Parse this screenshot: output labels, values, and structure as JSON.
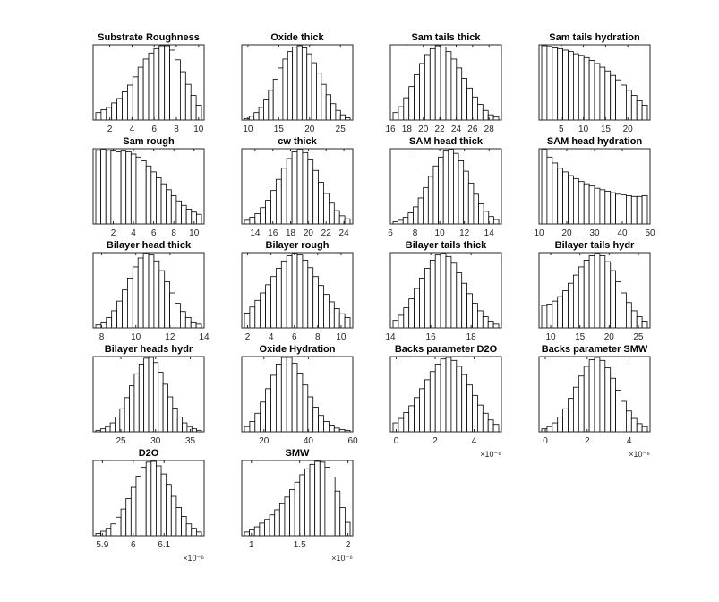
{
  "chart_data": [
    {
      "type": "bar",
      "title": "Substrate Roughness",
      "xlim": [
        0.5,
        10.5
      ],
      "xticks": [
        2,
        4,
        6,
        8,
        10
      ],
      "tick_labels": [
        "2",
        "4",
        "6",
        "8",
        "10"
      ],
      "exponent": "",
      "values": [
        0.1,
        0.14,
        0.17,
        0.23,
        0.29,
        0.38,
        0.47,
        0.58,
        0.71,
        0.82,
        0.9,
        0.96,
        1.0,
        1.0,
        0.94,
        0.81,
        0.65,
        0.48,
        0.33,
        0.2
      ]
    },
    {
      "type": "bar",
      "title": "Oxide thick",
      "xlim": [
        9,
        27
      ],
      "xticks": [
        10,
        15,
        20,
        25
      ],
      "tick_labels": [
        "10",
        "15",
        "20",
        "25"
      ],
      "exponent": "",
      "values": [
        0.02,
        0.05,
        0.1,
        0.17,
        0.27,
        0.4,
        0.55,
        0.7,
        0.82,
        0.92,
        0.98,
        1.0,
        0.97,
        0.89,
        0.77,
        0.63,
        0.48,
        0.34,
        0.22,
        0.13,
        0.07,
        0.03
      ]
    },
    {
      "type": "bar",
      "title": "Sam tails thick",
      "xlim": [
        16,
        29.5
      ],
      "xticks": [
        16,
        18,
        20,
        22,
        24,
        26,
        28
      ],
      "tick_labels": [
        "16",
        "18",
        "20",
        "22",
        "24",
        "26",
        "28"
      ],
      "exponent": "",
      "values": [
        0.1,
        0.18,
        0.3,
        0.45,
        0.61,
        0.76,
        0.88,
        0.96,
        1.0,
        0.98,
        0.92,
        0.82,
        0.7,
        0.56,
        0.43,
        0.31,
        0.21,
        0.13,
        0.07,
        0.04
      ]
    },
    {
      "type": "bar",
      "title": "Sam tails hydration",
      "xlim": [
        0,
        25
      ],
      "xticks": [
        5,
        10,
        15,
        20
      ],
      "tick_labels": [
        "5",
        "10",
        "15",
        "20"
      ],
      "exponent": "",
      "values": [
        1.0,
        0.99,
        0.97,
        0.96,
        0.94,
        0.92,
        0.89,
        0.87,
        0.84,
        0.8,
        0.76,
        0.71,
        0.66,
        0.6,
        0.54,
        0.47,
        0.4,
        0.33,
        0.26,
        0.2
      ]
    },
    {
      "type": "bar",
      "title": "Sam rough",
      "xlim": [
        0,
        11
      ],
      "xticks": [
        2,
        4,
        6,
        8,
        10
      ],
      "tick_labels": [
        "2",
        "4",
        "6",
        "8",
        "10"
      ],
      "exponent": "",
      "values": [
        0.99,
        1.0,
        0.99,
        0.98,
        0.97,
        0.98,
        0.97,
        0.94,
        0.9,
        0.85,
        0.78,
        0.7,
        0.62,
        0.54,
        0.46,
        0.38,
        0.31,
        0.25,
        0.2,
        0.16,
        0.13
      ]
    },
    {
      "type": "bar",
      "title": "cw thick",
      "xlim": [
        12.5,
        25
      ],
      "xticks": [
        14,
        16,
        18,
        20,
        22,
        24
      ],
      "tick_labels": [
        "14",
        "16",
        "18",
        "20",
        "22",
        "24"
      ],
      "exponent": "",
      "values": [
        0.05,
        0.09,
        0.14,
        0.22,
        0.32,
        0.45,
        0.6,
        0.75,
        0.88,
        0.97,
        1.0,
        0.96,
        0.86,
        0.72,
        0.56,
        0.41,
        0.28,
        0.18,
        0.11,
        0.07
      ]
    },
    {
      "type": "bar",
      "title": "SAM head thick",
      "xlim": [
        6,
        15
      ],
      "xticks": [
        6,
        8,
        10,
        12,
        14
      ],
      "tick_labels": [
        "6",
        "8",
        "10",
        "12",
        "14"
      ],
      "exponent": "",
      "values": [
        0.03,
        0.05,
        0.09,
        0.15,
        0.23,
        0.35,
        0.49,
        0.64,
        0.78,
        0.9,
        0.98,
        1.0,
        0.95,
        0.85,
        0.71,
        0.55,
        0.4,
        0.27,
        0.17,
        0.1,
        0.06
      ]
    },
    {
      "type": "bar",
      "title": "SAM head hydration",
      "xlim": [
        10,
        50
      ],
      "xticks": [
        10,
        20,
        30,
        40,
        50
      ],
      "tick_labels": [
        "10",
        "20",
        "30",
        "40",
        "50"
      ],
      "exponent": "",
      "values": [
        1.0,
        0.9,
        0.82,
        0.75,
        0.7,
        0.65,
        0.61,
        0.57,
        0.54,
        0.51,
        0.48,
        0.46,
        0.44,
        0.42,
        0.4,
        0.39,
        0.38,
        0.37,
        0.37,
        0.38
      ]
    },
    {
      "type": "bar",
      "title": "Bilayer head thick",
      "xlim": [
        7.5,
        14
      ],
      "xticks": [
        8,
        10,
        12,
        14
      ],
      "tick_labels": [
        "8",
        "10",
        "12",
        "14"
      ],
      "exponent": "",
      "values": [
        0.04,
        0.08,
        0.14,
        0.23,
        0.36,
        0.51,
        0.67,
        0.82,
        0.94,
        1.0,
        0.98,
        0.9,
        0.77,
        0.62,
        0.47,
        0.33,
        0.22,
        0.14,
        0.08,
        0.05
      ]
    },
    {
      "type": "bar",
      "title": "Bilayer rough",
      "xlim": [
        1.5,
        11
      ],
      "xticks": [
        2,
        4,
        6,
        8,
        10
      ],
      "tick_labels": [
        "2",
        "4",
        "6",
        "8",
        "10"
      ],
      "exponent": "",
      "values": [
        0.2,
        0.28,
        0.37,
        0.47,
        0.58,
        0.69,
        0.8,
        0.9,
        0.97,
        1.0,
        0.98,
        0.91,
        0.81,
        0.69,
        0.57,
        0.45,
        0.35,
        0.26,
        0.19,
        0.14
      ]
    },
    {
      "type": "bar",
      "title": "Bilayer tails thick",
      "xlim": [
        14,
        19.5
      ],
      "xticks": [
        14,
        16,
        18
      ],
      "tick_labels": [
        "14",
        "16",
        "18"
      ],
      "exponent": "",
      "values": [
        0.1,
        0.17,
        0.27,
        0.39,
        0.53,
        0.67,
        0.8,
        0.91,
        0.98,
        1.0,
        0.96,
        0.87,
        0.74,
        0.6,
        0.46,
        0.33,
        0.23,
        0.15,
        0.09,
        0.05
      ]
    },
    {
      "type": "bar",
      "title": "Bilayer tails hydr",
      "xlim": [
        8,
        27
      ],
      "xticks": [
        10,
        15,
        20,
        25
      ],
      "tick_labels": [
        "10",
        "15",
        "20",
        "25"
      ],
      "exponent": "",
      "values": [
        0.3,
        0.32,
        0.36,
        0.42,
        0.5,
        0.6,
        0.71,
        0.82,
        0.91,
        0.97,
        1.0,
        0.97,
        0.89,
        0.77,
        0.62,
        0.47,
        0.34,
        0.23,
        0.15,
        0.09
      ]
    },
    {
      "type": "bar",
      "title": "Bilayer heads hydr",
      "xlim": [
        21,
        37
      ],
      "xticks": [
        25,
        30,
        35
      ],
      "tick_labels": [
        "25",
        "30",
        "35"
      ],
      "exponent": "",
      "values": [
        0.02,
        0.04,
        0.07,
        0.12,
        0.2,
        0.31,
        0.46,
        0.62,
        0.78,
        0.91,
        0.99,
        1.0,
        0.93,
        0.8,
        0.64,
        0.47,
        0.32,
        0.2,
        0.12,
        0.07,
        0.04,
        0.02
      ]
    },
    {
      "type": "bar",
      "title": "Oxide Hydration",
      "xlim": [
        10,
        60
      ],
      "xticks": [
        20,
        40,
        60
      ],
      "tick_labels": [
        "20",
        "40",
        "60"
      ],
      "exponent": "",
      "values": [
        0.07,
        0.14,
        0.25,
        0.4,
        0.58,
        0.76,
        0.91,
        1.0,
        1.0,
        0.92,
        0.79,
        0.63,
        0.47,
        0.33,
        0.22,
        0.14,
        0.09,
        0.05,
        0.03,
        0.02
      ]
    },
    {
      "type": "bar",
      "title": "Backs parameter D2O",
      "xlim": [
        -3e-07,
        5.4e-06
      ],
      "xticks": [
        0,
        2e-06,
        4e-06
      ],
      "tick_labels": [
        "0",
        "2",
        "4"
      ],
      "exponent": "×10⁻⁶",
      "values": [
        0.12,
        0.18,
        0.26,
        0.35,
        0.46,
        0.58,
        0.7,
        0.81,
        0.91,
        0.98,
        1.0,
        0.96,
        0.88,
        0.77,
        0.63,
        0.49,
        0.36,
        0.25,
        0.16,
        0.1
      ]
    },
    {
      "type": "bar",
      "title": "Backs parameter SMW",
      "xlim": [
        -3e-07,
        5e-06
      ],
      "xticks": [
        0,
        2e-06,
        4e-06
      ],
      "tick_labels": [
        "0",
        "2",
        "4"
      ],
      "exponent": "×10⁻⁶",
      "values": [
        0.04,
        0.07,
        0.12,
        0.2,
        0.31,
        0.45,
        0.6,
        0.75,
        0.88,
        0.97,
        1.0,
        0.96,
        0.86,
        0.72,
        0.56,
        0.41,
        0.28,
        0.18,
        0.11,
        0.07
      ]
    },
    {
      "type": "bar",
      "title": "D2O",
      "xlim": [
        5.87e-06,
        6.23e-06
      ],
      "xticks": [
        5.9e-06,
        6e-06,
        6.1e-06
      ],
      "tick_labels": [
        "5.9",
        "6",
        "6.1"
      ],
      "exponent": "×10⁻⁶",
      "values": [
        0.03,
        0.06,
        0.1,
        0.16,
        0.25,
        0.36,
        0.5,
        0.65,
        0.8,
        0.92,
        0.99,
        1.0,
        0.94,
        0.83,
        0.69,
        0.53,
        0.38,
        0.26,
        0.16,
        0.1,
        0.05
      ]
    },
    {
      "type": "bar",
      "title": "SMW",
      "xlim": [
        9e-07,
        2.05e-06
      ],
      "xticks": [
        1e-06,
        1.5e-06,
        2e-06
      ],
      "tick_labels": [
        "1",
        "1.5",
        "2"
      ],
      "exponent": "×10⁻⁶",
      "values": [
        0.05,
        0.08,
        0.12,
        0.17,
        0.22,
        0.28,
        0.35,
        0.43,
        0.52,
        0.62,
        0.72,
        0.82,
        0.9,
        0.96,
        1.0,
        0.99,
        0.92,
        0.79,
        0.6,
        0.38,
        0.18
      ]
    }
  ]
}
